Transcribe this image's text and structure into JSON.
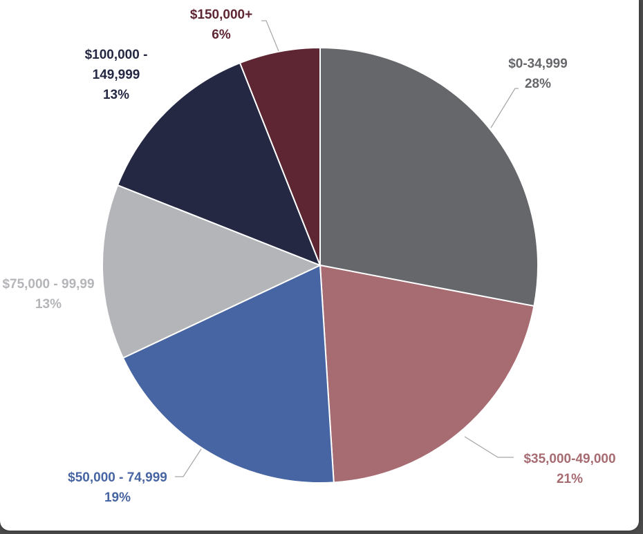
{
  "chart_data": {
    "type": "pie",
    "slices": [
      {
        "label": "$0-34,999",
        "value": 28,
        "value_label": "28%",
        "color": "#66676b"
      },
      {
        "label": "$35,000-49,000",
        "value": 21,
        "value_label": "21%",
        "color": "#a76b72"
      },
      {
        "label": "$50,000 - 74,999",
        "value": 19,
        "value_label": "19%",
        "color": "#4765a3"
      },
      {
        "label": "$75,000 - 99,99",
        "value": 13,
        "value_label": "13%",
        "color": "#b4b5b9"
      },
      {
        "label": "$100,000 -\n149,999",
        "value": 13,
        "value_label": "13%",
        "color": "#242843"
      },
      {
        "label": "$150,000+",
        "value": 6,
        "value_label": "6%",
        "color": "#5e2532"
      }
    ],
    "start": "12 o'clock",
    "direction": "clockwise",
    "legend": "none",
    "data_labels": "outside with leader lines"
  }
}
